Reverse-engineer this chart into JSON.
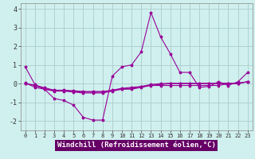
{
  "xlabel": "Windchill (Refroidissement éolien,°C)",
  "bg_color": "#cff0ee",
  "line_color": "#990099",
  "grid_color": "#aacccc",
  "xlabel_bg": "#660066",
  "xlabel_fg": "#ffffff",
  "x": [
    0,
    1,
    2,
    3,
    4,
    5,
    6,
    7,
    8,
    9,
    10,
    11,
    12,
    13,
    14,
    15,
    16,
    17,
    18,
    19,
    20,
    21,
    22,
    23
  ],
  "series": [
    [
      0.9,
      -0.05,
      -0.3,
      -0.8,
      -0.9,
      -1.15,
      -1.8,
      -1.95,
      -1.95,
      0.4,
      0.9,
      1.0,
      1.7,
      3.8,
      2.5,
      1.6,
      0.6,
      0.6,
      -0.2,
      -0.15,
      0.1,
      -0.1,
      0.1,
      0.6
    ],
    [
      0.05,
      -0.2,
      -0.3,
      -0.4,
      -0.4,
      -0.45,
      -0.5,
      -0.5,
      -0.5,
      -0.4,
      -0.3,
      -0.3,
      -0.2,
      -0.1,
      -0.1,
      -0.1,
      -0.1,
      -0.1,
      -0.1,
      -0.1,
      -0.1,
      0.0,
      0.0,
      0.1
    ],
    [
      0.0,
      -0.1,
      -0.28,
      -0.38,
      -0.38,
      -0.42,
      -0.45,
      -0.45,
      -0.45,
      -0.38,
      -0.28,
      -0.25,
      -0.18,
      -0.08,
      -0.05,
      0.0,
      0.0,
      0.0,
      0.0,
      0.0,
      0.0,
      0.0,
      0.02,
      0.1
    ],
    [
      0.0,
      -0.08,
      -0.22,
      -0.35,
      -0.35,
      -0.38,
      -0.42,
      -0.42,
      -0.42,
      -0.35,
      -0.25,
      -0.2,
      -0.15,
      -0.05,
      0.0,
      0.02,
      0.02,
      0.02,
      0.02,
      0.02,
      0.02,
      0.02,
      0.02,
      0.1
    ]
  ],
  "xlim": [
    -0.5,
    23.5
  ],
  "ylim": [
    -2.5,
    4.3
  ],
  "yticks": [
    -2,
    -1,
    0,
    1,
    2,
    3,
    4
  ],
  "xticks": [
    0,
    1,
    2,
    3,
    4,
    5,
    6,
    7,
    8,
    9,
    10,
    11,
    12,
    13,
    14,
    15,
    16,
    17,
    18,
    19,
    20,
    21,
    22,
    23
  ],
  "xtick_labels": [
    "0",
    "1",
    "2",
    "3",
    "4",
    "5",
    "6",
    "7",
    "8",
    "9",
    "10",
    "11",
    "12",
    "13",
    "14",
    "15",
    "16",
    "17",
    "18",
    "19",
    "20",
    "21",
    "22",
    "23"
  ]
}
